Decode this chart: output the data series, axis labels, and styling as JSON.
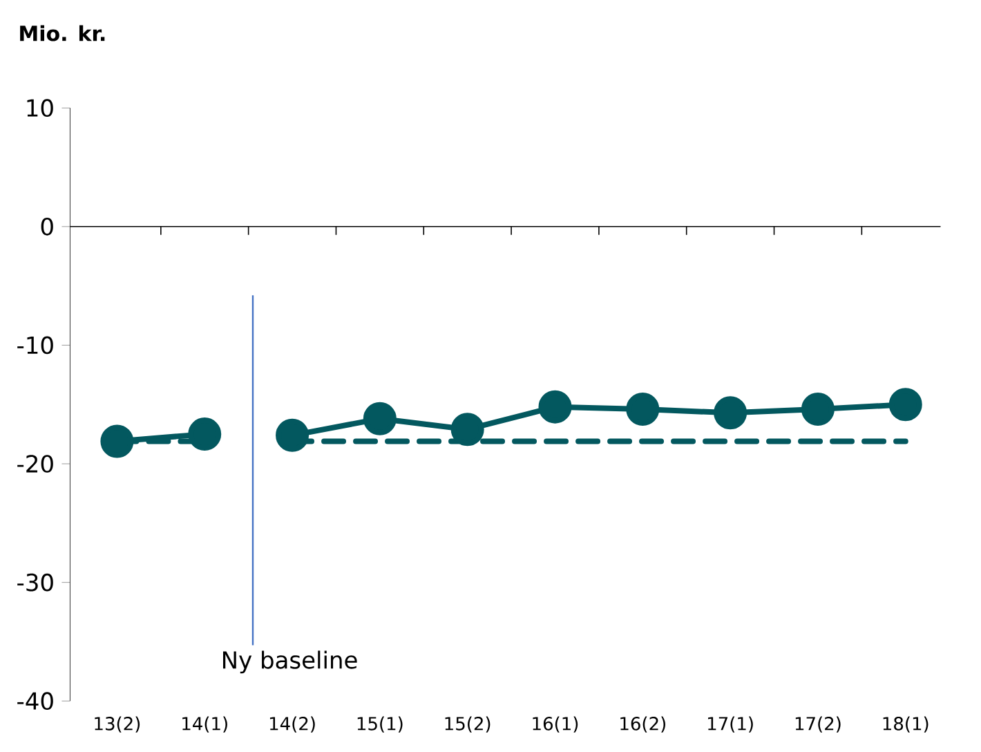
{
  "chart_data": {
    "type": "line",
    "ylabel": "Mio. kr.",
    "categories": [
      "13(2)",
      "14(1)",
      "14(2)",
      "15(1)",
      "15(2)",
      "16(1)",
      "16(2)",
      "17(1)",
      "17(2)",
      "18(1)"
    ],
    "series": [
      {
        "color": "#03585f",
        "marker": "circle",
        "line_style": "solid",
        "values": [
          -18.1,
          -17.5,
          null,
          null,
          null,
          null,
          null,
          null,
          null,
          null
        ]
      },
      {
        "color": "#03585f",
        "marker": "circle",
        "line_style": "solid",
        "values": [
          null,
          null,
          -17.6,
          -16.2,
          -17.1,
          -15.2,
          -15.4,
          -15.7,
          -15.4,
          -15.0
        ]
      },
      {
        "color": "#03585f",
        "line_style": "dashed",
        "values": [
          -18.1,
          -18.1,
          null,
          null,
          null,
          null,
          null,
          null,
          null,
          null
        ]
      },
      {
        "color": "#03585f",
        "line_style": "dashed",
        "values": [
          null,
          null,
          -18.1,
          -18.1,
          -18.1,
          -18.1,
          -18.1,
          -18.1,
          -18.1,
          -18.1
        ]
      }
    ],
    "ylim": [
      -40,
      10
    ],
    "yticks": [
      -40,
      -30,
      -20,
      -10,
      0,
      10
    ],
    "annotations": [
      "Ny baseline"
    ]
  }
}
